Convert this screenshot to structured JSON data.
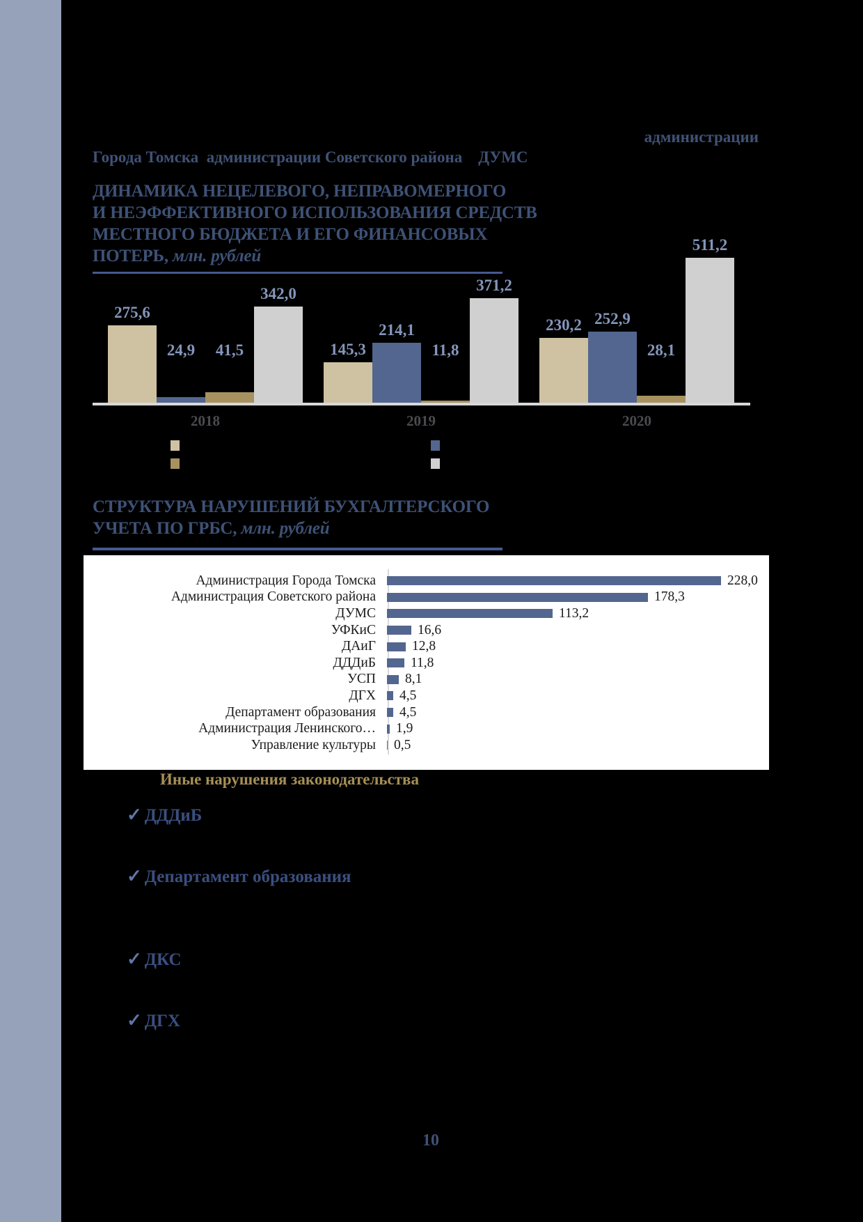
{
  "page": {
    "number": "10",
    "background": "#000000",
    "strip_color": "#96a1ba"
  },
  "intro": {
    "line1_fragment": "администрации",
    "line2_fragment": "Города Томска  администрации Советского района    ДУМС"
  },
  "sections": {
    "other_violations": {
      "title": "Иные нарушения законодательства",
      "checkmark": "✓",
      "items": [
        "ДДДиБ",
        "Департамент образования",
        "ДКС",
        "ДГХ"
      ]
    }
  },
  "chart_data": [
    {
      "type": "bar",
      "title": "ДИНАМИКА НЕЦЕЛЕВОГО, НЕПРАВОМЕРНОГО И НЕЭФФЕКТИВНОГО ИСПОЛЬЗОВАНИЯ СРЕДСТВ МЕСТНОГО БЮДЖЕТА И ЕГО ФИНАНСОВЫХ ПОТЕРЬ, млн. рублей",
      "title_lines": [
        "ДИНАМИКА НЕЦЕЛЕВОГО, НЕПРАВОМЕРНОГО",
        "И НЕЭФФЕКТИВНОГО ИСПОЛЬЗОВАНИЯ СРЕДСТВ",
        "МЕСТНОГО БЮДЖЕТА И ЕГО ФИНАНСОВЫХ"
      ],
      "title_tail_bold": "ПОТЕРЬ,",
      "title_tail_italic": " млн. рублей",
      "categories": [
        "2018",
        "2019",
        "2020"
      ],
      "ylim": [
        0,
        511.2
      ],
      "grid": false,
      "series": [
        {
          "name": "",
          "color": "#cfc2a2",
          "values": [
            275.6,
            145.3,
            230.2
          ],
          "labels": [
            "275,6",
            "145,3",
            "230,2"
          ]
        },
        {
          "name": "",
          "color": "#52668f",
          "values": [
            24.9,
            214.1,
            252.9
          ],
          "labels": [
            "24,9",
            "214,1",
            "252,9"
          ]
        },
        {
          "name": "",
          "color": "#a7925f",
          "values": [
            41.5,
            11.8,
            28.1
          ],
          "labels": [
            "41,5",
            "11,8",
            "28,1"
          ]
        },
        {
          "name": "",
          "color": "#d0d0d1",
          "values": [
            342.0,
            371.2,
            511.2
          ],
          "labels": [
            "342,0",
            "371,2",
            "511,2"
          ]
        }
      ],
      "legend": {
        "position": "bottom",
        "labels_visible": false,
        "swatches": [
          "#cfc2a2",
          "#52668f",
          "#a7925f",
          "#d0d0d1"
        ]
      },
      "value_label_color": "#8496ba",
      "axis_line_color": "#d8d8da"
    },
    {
      "type": "bar",
      "orientation": "horizontal",
      "title": "СТРУКТУРА НАРУШЕНИЙ БУХГАЛТЕРСКОГО УЧЕТА ПО ГРБС, млн. рублей",
      "title_line1": "СТРУКТУРА НАРУШЕНИЙ БУХГАЛТЕРСКОГО",
      "title_tail_bold": "УЧЕТА ПО ГРБС,",
      "title_tail_italic": " млн. рублей",
      "categories": [
        "Администрация Города Томска",
        "Администрация Советского района",
        "ДУМС",
        "УФКиС",
        "ДАиГ",
        "ДДДиБ",
        "УСП",
        "ДГХ",
        "Департамент образования",
        "Администрация Ленинского…",
        "Управление культуры"
      ],
      "values": [
        228.0,
        178.3,
        113.2,
        16.6,
        12.8,
        11.8,
        8.1,
        4.5,
        4.5,
        1.9,
        0.5
      ],
      "value_labels": [
        "228,0",
        "178,3",
        "113,2",
        "16,6",
        "12,8",
        "11,8",
        "8,1",
        "4,5",
        "4,5",
        "1,9",
        "0,5"
      ],
      "bar_color": "#52668f",
      "xlim": [
        0,
        240
      ],
      "background": "#ffffff",
      "grid": false
    }
  ]
}
